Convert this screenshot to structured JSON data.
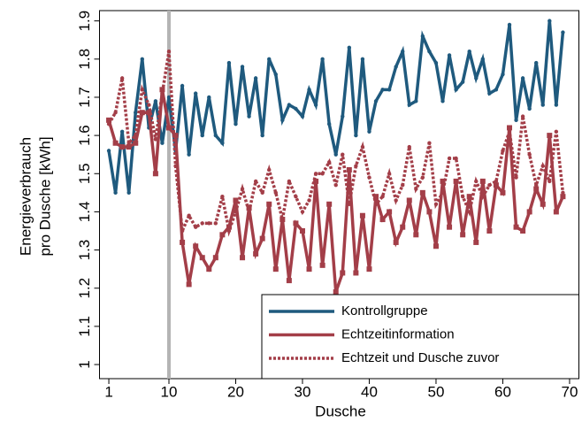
{
  "chart_data": {
    "type": "line",
    "x_label": "Dusche",
    "y_label": [
      "Energieverbrauch",
      "pro Dusche [kWh]"
    ],
    "x": [
      1,
      2,
      3,
      4,
      5,
      6,
      7,
      8,
      9,
      10,
      11,
      12,
      13,
      14,
      15,
      16,
      17,
      18,
      19,
      20,
      21,
      22,
      23,
      24,
      25,
      26,
      27,
      28,
      29,
      30,
      31,
      32,
      33,
      34,
      35,
      36,
      37,
      38,
      39,
      40,
      41,
      42,
      43,
      44,
      45,
      46,
      47,
      48,
      49,
      50,
      51,
      52,
      53,
      54,
      55,
      56,
      57,
      58,
      59,
      60,
      61,
      62,
      63,
      64,
      65,
      66,
      67,
      68,
      69
    ],
    "series": [
      {
        "name": "Kontrollgruppe",
        "color": "#1f5a7e",
        "line_style": "solid",
        "marker": "circle",
        "values": [
          1.56,
          1.45,
          1.61,
          1.45,
          1.66,
          1.8,
          1.62,
          1.69,
          1.58,
          1.7,
          1.56,
          1.73,
          1.55,
          1.71,
          1.6,
          1.7,
          1.6,
          1.58,
          1.79,
          1.63,
          1.78,
          1.65,
          1.75,
          1.6,
          1.8,
          1.76,
          1.64,
          1.68,
          1.67,
          1.65,
          1.72,
          1.68,
          1.8,
          1.63,
          1.55,
          1.65,
          1.83,
          1.6,
          1.8,
          1.61,
          1.69,
          1.72,
          1.72,
          1.78,
          1.82,
          1.68,
          1.69,
          1.86,
          1.82,
          1.79,
          1.69,
          1.81,
          1.72,
          1.74,
          1.82,
          1.75,
          1.8,
          1.71,
          1.72,
          1.76,
          1.89,
          1.64,
          1.75,
          1.67,
          1.79,
          1.68,
          1.9,
          1.68,
          1.87
        ]
      },
      {
        "name": "Echtzeitinformation",
        "color": "#a33e48",
        "line_style": "solid",
        "marker": "square",
        "values": [
          1.64,
          1.58,
          1.57,
          1.57,
          1.58,
          1.66,
          1.66,
          1.5,
          1.72,
          1.62,
          1.6,
          1.32,
          1.21,
          1.31,
          1.28,
          1.25,
          1.28,
          1.34,
          1.36,
          1.43,
          1.28,
          1.41,
          1.29,
          1.33,
          1.42,
          1.25,
          1.38,
          1.22,
          1.37,
          1.35,
          1.25,
          1.48,
          1.26,
          1.42,
          1.19,
          1.24,
          1.51,
          1.24,
          1.39,
          1.25,
          1.44,
          1.38,
          1.4,
          1.32,
          1.36,
          1.43,
          1.34,
          1.45,
          1.4,
          1.31,
          1.48,
          1.36,
          1.48,
          1.34,
          1.44,
          1.32,
          1.48,
          1.35,
          1.47,
          1.45,
          1.62,
          1.36,
          1.35,
          1.4,
          1.46,
          1.42,
          1.6,
          1.4,
          1.44
        ]
      },
      {
        "name": "Echtzeit und Dusche zuvor",
        "color": "#a33e48",
        "line_style": "dotted",
        "marker": "circle",
        "values": [
          1.63,
          1.66,
          1.75,
          1.58,
          1.6,
          1.72,
          1.68,
          1.59,
          1.71,
          1.82,
          1.52,
          1.35,
          1.39,
          1.36,
          1.37,
          1.37,
          1.37,
          1.44,
          1.35,
          1.4,
          1.46,
          1.4,
          1.48,
          1.45,
          1.51,
          1.45,
          1.38,
          1.48,
          1.44,
          1.4,
          1.43,
          1.5,
          1.5,
          1.53,
          1.47,
          1.55,
          1.42,
          1.52,
          1.57,
          1.49,
          1.42,
          1.44,
          1.5,
          1.43,
          1.47,
          1.57,
          1.46,
          1.49,
          1.58,
          1.42,
          1.45,
          1.54,
          1.54,
          1.44,
          1.4,
          1.48,
          1.44,
          1.47,
          1.48,
          1.56,
          1.61,
          1.49,
          1.65,
          1.55,
          1.47,
          1.52,
          1.48,
          1.61,
          1.45
        ]
      }
    ],
    "xlim": [
      0,
      71
    ],
    "xticks": [
      1,
      10,
      20,
      30,
      40,
      50,
      60,
      70
    ],
    "ylim": [
      0.97,
      1.92
    ],
    "yticks": [
      1,
      1.1,
      1.2,
      1.3,
      1.4,
      1.5,
      1.6,
      1.7,
      1.8,
      1.9
    ],
    "vline": 10,
    "vline_color": "#b4b4b4",
    "legend_position": "lower-right"
  }
}
